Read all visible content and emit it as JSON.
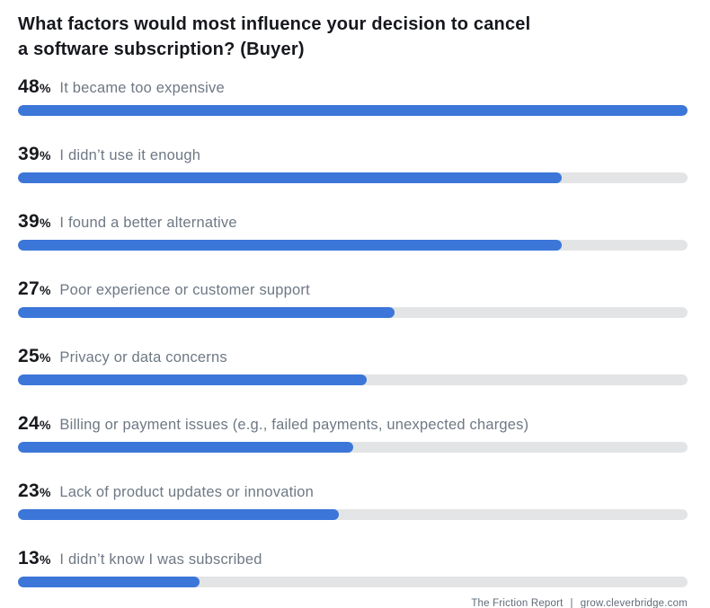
{
  "page": {
    "title": "What factors would most influence your decision to cancel\na software subscription? (Buyer)",
    "footer": {
      "report": "The Friction Report",
      "divider": "|",
      "site": "grow.cleverbridge.com"
    }
  },
  "percent_suffix": "%",
  "colors": {
    "title_text": "#16181D",
    "percent_text": "#17191D",
    "label_text": "#6E7884",
    "bar_fill": "#3B76D8",
    "bar_track": "#E3E4E6",
    "footer_text": "#5F6B79"
  },
  "chart_data": {
    "type": "bar",
    "orientation": "horizontal",
    "title": "What factors would most influence your decision to cancel a software subscription? (Buyer)",
    "categories": [
      "It became too expensive",
      "I didn’t use it enough",
      "I found a better alternative",
      "Poor experience or customer support",
      "Privacy or data concerns",
      "Billing or payment issues (e.g., failed payments, unexpected charges)",
      "Lack of product updates or innovation",
      "I didn’t know I was subscribed"
    ],
    "values": [
      48,
      39,
      39,
      27,
      25,
      24,
      23,
      13
    ],
    "value_unit": "%",
    "xlim": [
      0,
      48
    ],
    "grid": false,
    "legend": "none",
    "note": "bars scaled so the maximum value (48%) fills the full track width"
  }
}
